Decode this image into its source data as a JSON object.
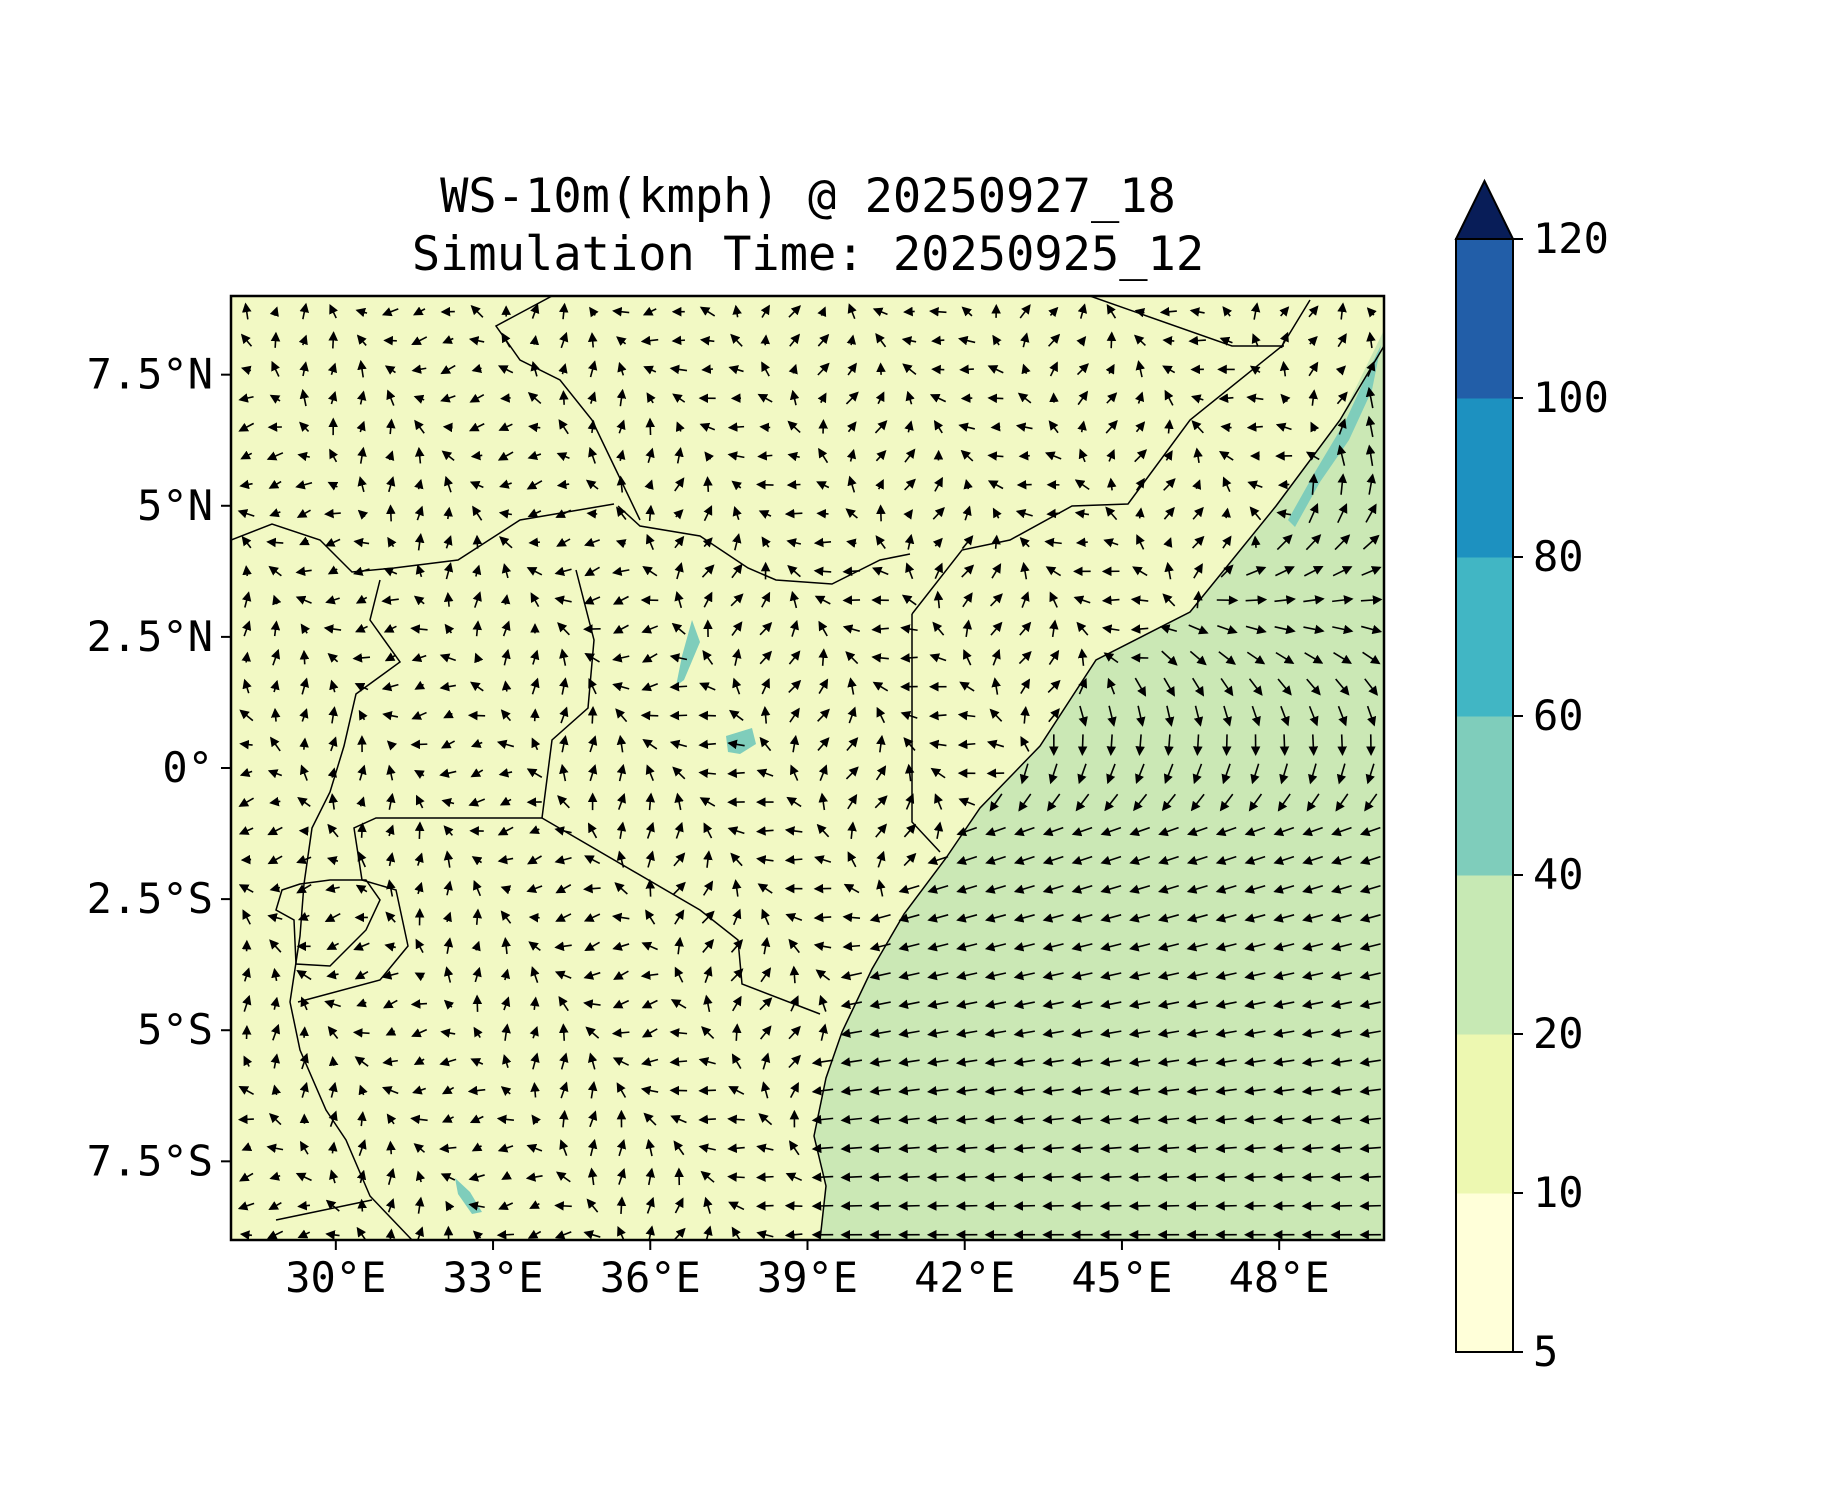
{
  "title": {
    "line1": "WS-10m(kmph) @ 20250927_18",
    "line2": "Simulation Time: 20250925_12"
  },
  "map": {
    "lon_range": [
      28,
      50
    ],
    "lat_range": [
      -9,
      9
    ],
    "x_ticks": [
      {
        "value": 30,
        "label": "30°E"
      },
      {
        "value": 33,
        "label": "33°E"
      },
      {
        "value": 36,
        "label": "36°E"
      },
      {
        "value": 39,
        "label": "39°E"
      },
      {
        "value": 42,
        "label": "42°E"
      },
      {
        "value": 45,
        "label": "45°E"
      },
      {
        "value": 48,
        "label": "48°E"
      }
    ],
    "y_ticks": [
      {
        "value": 7.5,
        "label": "7.5°N"
      },
      {
        "value": 5,
        "label": "5°N"
      },
      {
        "value": 2.5,
        "label": "2.5°N"
      },
      {
        "value": 0,
        "label": "0°"
      },
      {
        "value": -2.5,
        "label": "2.5°S"
      },
      {
        "value": -5,
        "label": "5°S"
      },
      {
        "value": -7.5,
        "label": "7.5°S"
      }
    ],
    "field": "10 m wind speed with wind direction arrows",
    "coastline": [
      [
        50,
        7.8
      ],
      [
        49,
        6
      ],
      [
        47.5,
        4
      ],
      [
        46,
        2.5
      ],
      [
        44.5,
        1.3
      ],
      [
        43,
        0
      ],
      [
        42,
        -1.2
      ],
      [
        41,
        -2.1
      ],
      [
        40,
        -3.2
      ],
      [
        39.5,
        -4.5
      ],
      [
        39.2,
        -5.5
      ],
      [
        38.9,
        -6.8
      ],
      [
        39.3,
        -8
      ],
      [
        39.2,
        -9
      ]
    ]
  },
  "colorbar": {
    "extend": "max",
    "levels": [
      5,
      10,
      20,
      40,
      60,
      80,
      100,
      120
    ],
    "labels": [
      "5",
      "10",
      "20",
      "40",
      "60",
      "80",
      "100",
      "120"
    ],
    "colors": [
      "#ffffd9",
      "#edf8b1",
      "#c7e9b4",
      "#7fcdbb",
      "#41b6c4",
      "#1d91c0",
      "#225ea8",
      "#0c2c84"
    ],
    "extend_color": "#081d58"
  },
  "colors": {
    "land_light": "#f2f9c4",
    "ocean": "#cbe8b5",
    "strong_patch": "#7fcdbb"
  }
}
